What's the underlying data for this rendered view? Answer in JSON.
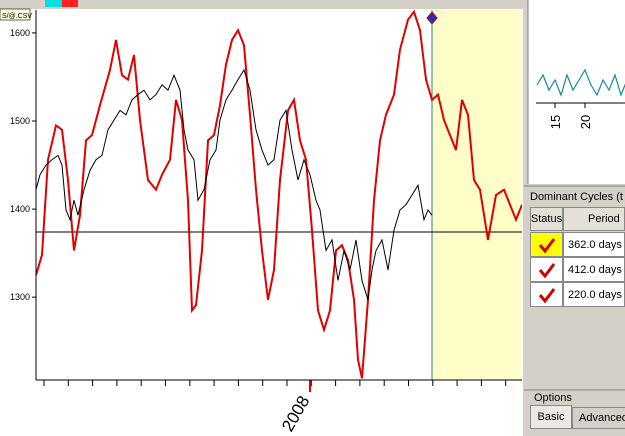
{
  "toolbar": {
    "file_label": "S/@.CSV"
  },
  "chart_data": {
    "type": "line",
    "xlim": [
      0,
      486
    ],
    "ylim": [
      1206,
      1626
    ],
    "yticks": [
      1300,
      1400,
      1500,
      1600
    ],
    "xticks": [
      {
        "value": 274,
        "label": "2008"
      }
    ],
    "reference_line": 1374,
    "forecast_start": 396,
    "series": [
      {
        "color": "#e00000",
        "x": [
          0,
          6,
          12,
          20,
          26,
          32,
          38,
          44,
          50,
          56,
          64,
          74,
          80,
          86,
          92,
          98,
          104,
          112,
          120,
          126,
          134,
          140,
          146,
          152,
          156,
          160,
          166,
          172,
          178,
          184,
          190,
          196,
          202,
          208,
          214,
          220,
          226,
          232,
          238,
          244,
          252,
          258,
          264,
          270,
          276,
          282,
          288,
          294,
          300,
          306,
          312,
          318,
          322,
          326,
          332,
          338,
          344,
          350,
          358,
          364,
          372,
          378,
          384,
          390,
          396,
          402,
          408,
          414,
          420,
          426,
          432,
          438,
          444,
          452,
          460,
          468,
          474,
          480,
          486
        ],
        "values": [
          1325,
          1348,
          1456,
          1495,
          1490,
          1433,
          1353,
          1393,
          1478,
          1484,
          1518,
          1558,
          1592,
          1552,
          1547,
          1575,
          1501,
          1433,
          1422,
          1439,
          1456,
          1524,
          1501,
          1410,
          1285,
          1291,
          1353,
          1478,
          1484,
          1518,
          1564,
          1592,
          1603,
          1586,
          1507,
          1422,
          1353,
          1297,
          1331,
          1433,
          1512,
          1524,
          1478,
          1456,
          1376,
          1285,
          1263,
          1285,
          1353,
          1359,
          1342,
          1297,
          1229,
          1208,
          1297,
          1410,
          1478,
          1507,
          1530,
          1581,
          1615,
          1624,
          1603,
          1547,
          1524,
          1530,
          1501,
          1484,
          1467,
          1524,
          1507,
          1433,
          1422,
          1365,
          1416,
          1422,
          1405,
          1388,
          1405
        ]
      },
      {
        "color": "#000000",
        "x": [
          0,
          4,
          10,
          16,
          22,
          26,
          30,
          34,
          38,
          42,
          48,
          54,
          60,
          66,
          72,
          78,
          84,
          90,
          96,
          102,
          108,
          114,
          120,
          126,
          132,
          138,
          144,
          148,
          152,
          158,
          162,
          168,
          174,
          180,
          184,
          190,
          196,
          202,
          208,
          214,
          220,
          226,
          232,
          238,
          244,
          250,
          256,
          262,
          268,
          274,
          280,
          284,
          290,
          296,
          302,
          308,
          314,
          320,
          326,
          332,
          336,
          340,
          346,
          352,
          358,
          364,
          370,
          376,
          382,
          388,
          392,
          396
        ],
        "values": [
          1422,
          1439,
          1450,
          1456,
          1461,
          1450,
          1399,
          1388,
          1410,
          1393,
          1422,
          1444,
          1456,
          1461,
          1490,
          1501,
          1512,
          1507,
          1524,
          1530,
          1535,
          1524,
          1530,
          1541,
          1535,
          1552,
          1535,
          1490,
          1467,
          1456,
          1410,
          1422,
          1456,
          1467,
          1501,
          1524,
          1535,
          1547,
          1558,
          1535,
          1490,
          1467,
          1450,
          1456,
          1501,
          1512,
          1467,
          1433,
          1456,
          1439,
          1410,
          1399,
          1353,
          1365,
          1319,
          1353,
          1331,
          1365,
          1319,
          1297,
          1331,
          1353,
          1365,
          1331,
          1376,
          1399,
          1405,
          1416,
          1427,
          1388,
          1399,
          1393
        ]
      }
    ]
  },
  "spectrum_chart": {
    "type": "line",
    "color": "#1a8a96",
    "xlim": [
      11.8,
      30.8
    ],
    "ylim": [
      0,
      10
    ],
    "xticks": [
      15,
      20
    ],
    "x": [
      12,
      13,
      14,
      15,
      16,
      17,
      18,
      19,
      20,
      21,
      22,
      23,
      24,
      25,
      26,
      27,
      28,
      29,
      30
    ],
    "values": [
      4,
      6,
      3,
      5,
      2,
      6,
      3,
      5,
      7,
      4,
      2,
      5,
      3,
      6,
      2,
      5,
      4,
      3,
      5
    ]
  },
  "dominant_cycles": {
    "title": "Dominant Cycles (t",
    "columns": [
      "Status",
      "Period"
    ],
    "periods": [
      "362.0 days",
      "412.0 days",
      "220.0 days"
    ]
  },
  "options": {
    "title": "Options",
    "tabs": [
      "Basic",
      "Advanced"
    ]
  }
}
